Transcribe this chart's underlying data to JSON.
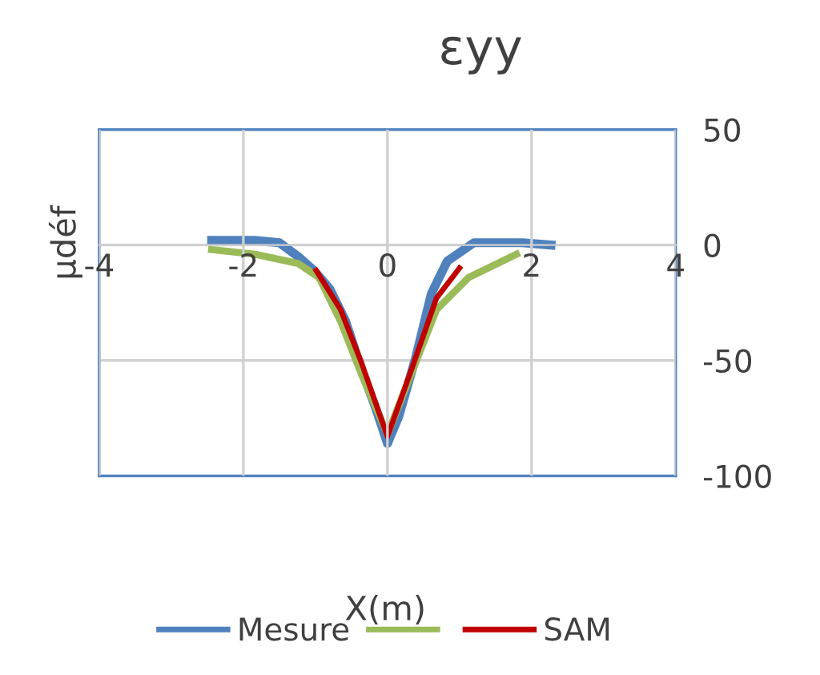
{
  "chart_data": {
    "type": "line",
    "title": "εyy",
    "xlabel": "X(m)",
    "ylabel": "µdéf",
    "xlim": [
      -4,
      4
    ],
    "ylim": [
      -100,
      50
    ],
    "xticks": [
      -4,
      -2,
      0,
      2,
      4
    ],
    "yticks": [
      -100,
      -50,
      0,
      50
    ],
    "grid": true,
    "legend": "bottom",
    "line_style": "solid",
    "marker": "none",
    "series": [
      {
        "name": "Mesure",
        "color": "#4f81bd",
        "x": [
          -2.44,
          -1.84,
          -1.5,
          -1.24,
          -1.02,
          -0.8,
          -0.58,
          -0.36,
          -0.17,
          0,
          0.16,
          0.39,
          0.61,
          0.83,
          1.2,
          1.87,
          2.27
        ],
        "values": [
          2,
          2,
          1,
          -5,
          -11,
          -19,
          -33,
          -54,
          -70,
          -86,
          -74,
          -49,
          -21,
          -7,
          1,
          1,
          0
        ]
      },
      {
        "color": "#9bbb59",
        "x": [
          -2.44,
          -1.84,
          -1.24,
          -0.95,
          -0.65,
          -0.36,
          0,
          0.39,
          0.68,
          1.13,
          1.79
        ],
        "values": [
          -2,
          -4,
          -8,
          -14,
          -33,
          -56,
          -82,
          -51,
          -28,
          -14,
          -4
        ]
      },
      {
        "name": "SAM",
        "color": "#c00000",
        "x": [
          -0.99,
          -0.65,
          -0.36,
          0,
          0.39,
          0.68,
          1.0
        ],
        "values": [
          -11,
          -28,
          -51,
          -83,
          -49,
          -23,
          -10
        ]
      }
    ]
  }
}
